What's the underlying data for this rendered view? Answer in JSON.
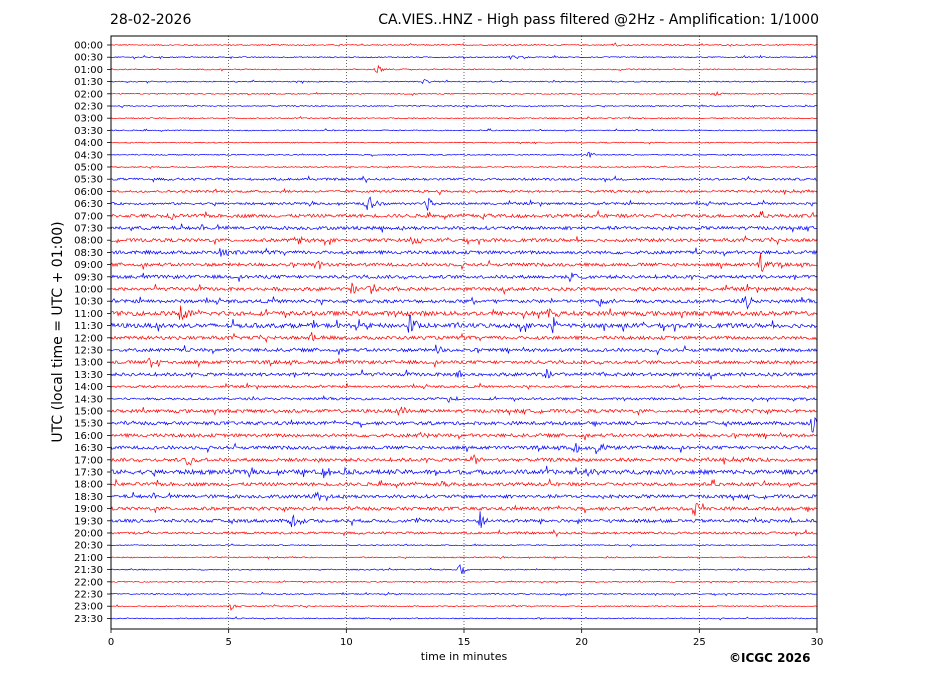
{
  "header": {
    "date": "28-02-2026",
    "title": "CA.VIES..HNZ - High pass filtered @2Hz - Amplification: 1/1000"
  },
  "copyright": "©ICGC 2026",
  "colors": {
    "odd_trace": "#ff0000",
    "even_trace": "#0000ff",
    "axis": "#000000",
    "grid": "#000000"
  },
  "chart_data": {
    "type": "line",
    "chart_kind": "helicorder",
    "xlabel": "time in minutes",
    "ylabel": "UTC (local time = UTC + 01:00)",
    "xlim": [
      0,
      30
    ],
    "xticks": [
      0,
      5,
      10,
      15,
      20,
      25,
      30
    ],
    "grid": "vertical dotted lines at x = 5, 10, 15, 20, 25",
    "trace_colors_alternate": [
      "red",
      "blue"
    ],
    "rows": [
      "00:00",
      "00:30",
      "01:00",
      "01:30",
      "02:00",
      "02:30",
      "03:00",
      "03:30",
      "04:00",
      "04:30",
      "05:00",
      "05:30",
      "06:00",
      "06:30",
      "07:00",
      "07:30",
      "08:00",
      "08:30",
      "09:00",
      "09:30",
      "10:00",
      "10:30",
      "11:00",
      "11:30",
      "12:00",
      "12:30",
      "13:00",
      "13:30",
      "14:00",
      "14:30",
      "15:00",
      "15:30",
      "16:00",
      "16:30",
      "17:00",
      "17:30",
      "18:00",
      "18:30",
      "19:00",
      "19:30",
      "20:00",
      "20:30",
      "21:00",
      "21:30",
      "22:00",
      "22:30",
      "23:00",
      "23:30"
    ],
    "noise_level": [
      1,
      1,
      1,
      1,
      1,
      1,
      1,
      1,
      1,
      1,
      1,
      2,
      2,
      2,
      3,
      3,
      3,
      3,
      3,
      3,
      3,
      3,
      4,
      4,
      3,
      3,
      3,
      3,
      2,
      2,
      3,
      3,
      3,
      3,
      3,
      4,
      3,
      3,
      3,
      3,
      2,
      1,
      1,
      1,
      1,
      1,
      1,
      1
    ],
    "events": [
      {
        "row": "00:00",
        "x": 21.4,
        "amp": 4
      },
      {
        "row": "00:30",
        "x": 17.0,
        "amp": 3
      },
      {
        "row": "01:00",
        "x": 11.3,
        "amp": 5
      },
      {
        "row": "01:30",
        "x": 13.3,
        "amp": 3
      },
      {
        "row": "02:00",
        "x": 25.6,
        "amp": 4
      },
      {
        "row": "04:30",
        "x": 20.3,
        "amp": 4
      },
      {
        "row": "06:30",
        "x": 10.9,
        "amp": 11
      },
      {
        "row": "06:30",
        "x": 13.4,
        "amp": 9
      },
      {
        "row": "07:00",
        "x": 2.5,
        "amp": 5
      },
      {
        "row": "07:00",
        "x": 15.8,
        "amp": 4
      },
      {
        "row": "08:00",
        "x": 7.9,
        "amp": 6
      },
      {
        "row": "08:00",
        "x": 12.8,
        "amp": 7
      },
      {
        "row": "08:30",
        "x": 4.7,
        "amp": 7
      },
      {
        "row": "09:00",
        "x": 8.7,
        "amp": 9
      },
      {
        "row": "09:00",
        "x": 27.6,
        "amp": 11
      },
      {
        "row": "09:30",
        "x": 19.5,
        "amp": 6
      },
      {
        "row": "10:00",
        "x": 10.2,
        "amp": 7
      },
      {
        "row": "10:00",
        "x": 11.0,
        "amp": 8
      },
      {
        "row": "10:30",
        "x": 20.8,
        "amp": 7
      },
      {
        "row": "10:30",
        "x": 27.0,
        "amp": 8
      },
      {
        "row": "11:00",
        "x": 3.0,
        "amp": 14
      },
      {
        "row": "11:00",
        "x": 18.6,
        "amp": 6
      },
      {
        "row": "11:30",
        "x": 12.7,
        "amp": 13
      },
      {
        "row": "11:30",
        "x": 18.8,
        "amp": 9
      },
      {
        "row": "12:00",
        "x": 8.5,
        "amp": 9
      },
      {
        "row": "12:30",
        "x": 13.8,
        "amp": 6
      },
      {
        "row": "13:00",
        "x": 1.7,
        "amp": 10
      },
      {
        "row": "13:30",
        "x": 14.7,
        "amp": 7
      },
      {
        "row": "13:30",
        "x": 18.4,
        "amp": 8
      },
      {
        "row": "14:30",
        "x": 14.4,
        "amp": 5
      },
      {
        "row": "15:00",
        "x": 12.4,
        "amp": 7
      },
      {
        "row": "15:30",
        "x": 29.8,
        "amp": 10
      },
      {
        "row": "16:00",
        "x": 13.2,
        "amp": 6
      },
      {
        "row": "16:30",
        "x": 19.7,
        "amp": 10
      },
      {
        "row": "16:30",
        "x": 20.6,
        "amp": 8
      },
      {
        "row": "17:00",
        "x": 3.3,
        "amp": 8
      },
      {
        "row": "17:00",
        "x": 15.4,
        "amp": 7
      },
      {
        "row": "17:30",
        "x": 9.0,
        "amp": 9
      },
      {
        "row": "17:30",
        "x": 20.3,
        "amp": 8
      },
      {
        "row": "18:00",
        "x": 14.0,
        "amp": 6
      },
      {
        "row": "18:30",
        "x": 8.7,
        "amp": 5
      },
      {
        "row": "19:00",
        "x": 24.8,
        "amp": 9
      },
      {
        "row": "19:30",
        "x": 7.7,
        "amp": 9
      },
      {
        "row": "19:30",
        "x": 15.7,
        "amp": 10
      },
      {
        "row": "21:30",
        "x": 14.8,
        "amp": 7
      },
      {
        "row": "23:00",
        "x": 5.1,
        "amp": 4
      }
    ]
  }
}
